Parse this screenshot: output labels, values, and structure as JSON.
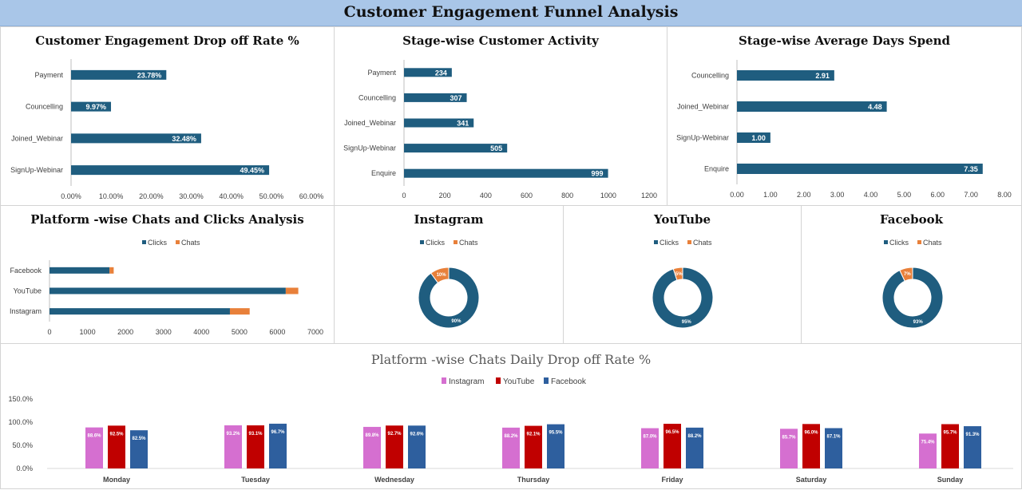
{
  "dashboard": {
    "title": "Customer Engagement Funnel Analysis"
  },
  "colors": {
    "bar_blue": "#1f5d7f",
    "chats_orange": "#e8803a",
    "instagram": "#d56fd0",
    "youtube": "#c00000",
    "facebook": "#2e5f9e",
    "banner": "#a9c6e8"
  },
  "chart_data": [
    {
      "id": "dropoff",
      "type": "bar",
      "orientation": "horizontal",
      "title": "Customer Engagement Drop off Rate %",
      "categories": [
        "Payment",
        "Councelling",
        "Joined_Webinar",
        "SignUp-Webinar"
      ],
      "values": [
        23.78,
        9.97,
        32.48,
        49.45
      ],
      "value_labels": [
        "23.78%",
        "9.97%",
        "32.48%",
        "49.45%"
      ],
      "xlim": [
        0,
        60
      ],
      "ticks": [
        "0.00%",
        "10.00%",
        "20.00%",
        "30.00%",
        "40.00%",
        "50.00%",
        "60.00%"
      ]
    },
    {
      "id": "activity",
      "type": "bar",
      "orientation": "horizontal",
      "title": "Stage-wise Customer Activity",
      "categories": [
        "Payment",
        "Councelling",
        "Joined_Webinar",
        "SignUp-Webinar",
        "Enquire"
      ],
      "values": [
        234,
        307,
        341,
        505,
        999
      ],
      "value_labels": [
        "234",
        "307",
        "341",
        "505",
        "999"
      ],
      "xlim": [
        0,
        1200
      ],
      "ticks": [
        "0",
        "200",
        "400",
        "600",
        "800",
        "1000",
        "1200"
      ]
    },
    {
      "id": "days",
      "type": "bar",
      "orientation": "horizontal",
      "title": "Stage-wise Average Days Spend",
      "categories": [
        "Councelling",
        "Joined_Webinar",
        "SignUp-Webinar",
        "Enquire"
      ],
      "values": [
        2.91,
        4.48,
        1.0,
        7.35
      ],
      "value_labels": [
        "2.91",
        "4.48",
        "1.00",
        "7.35"
      ],
      "xlim": [
        0,
        8
      ],
      "ticks": [
        "0.00",
        "1.00",
        "2.00",
        "3.00",
        "4.00",
        "5.00",
        "6.00",
        "7.00",
        "8.00"
      ]
    },
    {
      "id": "platform",
      "type": "bar",
      "orientation": "horizontal",
      "stacked": true,
      "title": "Platform -wise Chats and Clicks Analysis",
      "legend": [
        "Clicks",
        "Chats"
      ],
      "categories": [
        "Facebook",
        "YouTube",
        "Instagram"
      ],
      "series": [
        {
          "name": "Clicks",
          "values": [
            1580,
            6220,
            4750
          ]
        },
        {
          "name": "Chats",
          "values": [
            110,
            330,
            520
          ]
        }
      ],
      "xlim": [
        0,
        7000
      ],
      "ticks": [
        "0",
        "1000",
        "2000",
        "3000",
        "4000",
        "5000",
        "6000",
        "7000"
      ]
    },
    {
      "id": "instagram",
      "type": "pie",
      "title": "Instagram",
      "legend": [
        "Clicks",
        "Chats"
      ],
      "values": [
        90,
        10
      ],
      "value_labels": [
        "90%",
        "10%"
      ]
    },
    {
      "id": "youtube",
      "type": "pie",
      "title": "YouTube",
      "legend": [
        "Clicks",
        "Chats"
      ],
      "values": [
        95,
        5
      ],
      "value_labels": [
        "95%",
        "5%"
      ]
    },
    {
      "id": "facebook",
      "type": "pie",
      "title": "Facebook",
      "legend": [
        "Clicks",
        "Chats"
      ],
      "values": [
        93,
        7
      ],
      "value_labels": [
        "93%",
        "7%"
      ]
    },
    {
      "id": "daily",
      "type": "bar",
      "title": "Platform -wise Chats Daily Drop off Rate %",
      "categories": [
        "Monday",
        "Tuesday",
        "Wednesday",
        "Thursday",
        "Friday",
        "Saturday",
        "Sunday"
      ],
      "series": [
        {
          "name": "Instagram",
          "values": [
            88.6,
            93.2,
            89.8,
            88.2,
            87.0,
            85.7,
            75.4
          ],
          "labels": [
            "88.6%",
            "93.2%",
            "89.8%",
            "88.2%",
            "87.0%",
            "85.7%",
            "75.4%"
          ]
        },
        {
          "name": "YouTube",
          "values": [
            92.5,
            93.1,
            92.7,
            92.1,
            96.5,
            96.0,
            95.7
          ],
          "labels": [
            "92.5%",
            "93.1%",
            "92.7%",
            "92.1%",
            "96.5%",
            "96.0%",
            "95.7%"
          ]
        },
        {
          "name": "Facebook",
          "values": [
            82.5,
            96.7,
            92.6,
            95.5,
            88.2,
            87.1,
            91.3
          ],
          "labels": [
            "82.5%",
            "96.7%",
            "92.6%",
            "95.5%",
            "88.2%",
            "87.1%",
            "91.3%"
          ]
        }
      ],
      "ylim": [
        0,
        150
      ],
      "ticks": [
        "0.0%",
        "50.0%",
        "100.0%",
        "150.0%"
      ]
    }
  ]
}
